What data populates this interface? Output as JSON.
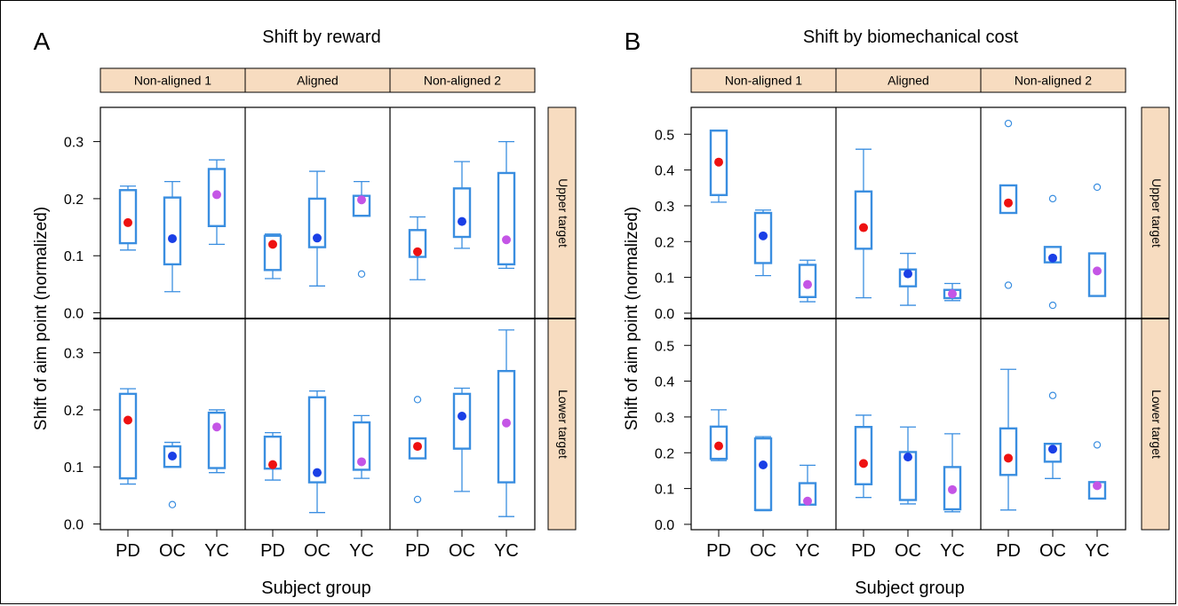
{
  "chart_data": [
    {
      "type": "box",
      "panel_letter": "A",
      "title": "Shift by reward",
      "ylabel": "Shift of aim point (normalized)",
      "xlabel": "Subject group",
      "categories": [
        "PD",
        "OC",
        "YC"
      ],
      "column_strips": [
        "Non-aligned 1",
        "Aligned",
        "Non-aligned 2"
      ],
      "row_strips": [
        "Upper target",
        "Lower target"
      ],
      "ylim": [
        -0.01,
        0.36
      ],
      "yticks": [
        {
          "v": 0.0,
          "label": "0.0"
        },
        {
          "v": 0.1,
          "label": "0.1"
        },
        {
          "v": 0.2,
          "label": "0.2"
        },
        {
          "v": 0.3,
          "label": "0.3"
        }
      ],
      "rows": [
        [
          [
            {
              "g": "PD",
              "wlo": 0.11,
              "q1": 0.122,
              "q3": 0.215,
              "whi": 0.222,
              "mean": 0.158,
              "outliers": []
            },
            {
              "g": "OC",
              "wlo": 0.037,
              "q1": 0.085,
              "q3": 0.202,
              "whi": 0.23,
              "mean": 0.13,
              "outliers": []
            },
            {
              "g": "YC",
              "wlo": 0.12,
              "q1": 0.152,
              "q3": 0.252,
              "whi": 0.268,
              "mean": 0.207,
              "outliers": []
            }
          ],
          [
            {
              "g": "PD",
              "wlo": 0.06,
              "q1": 0.075,
              "q3": 0.135,
              "whi": 0.138,
              "mean": 0.12,
              "outliers": []
            },
            {
              "g": "OC",
              "wlo": 0.047,
              "q1": 0.115,
              "q3": 0.2,
              "whi": 0.248,
              "mean": 0.131,
              "outliers": []
            },
            {
              "g": "YC",
              "wlo": 0.17,
              "q1": 0.17,
              "q3": 0.205,
              "whi": 0.23,
              "mean": 0.198,
              "outliers": [
                0.068
              ]
            }
          ],
          [
            {
              "g": "PD",
              "wlo": 0.058,
              "q1": 0.098,
              "q3": 0.145,
              "whi": 0.168,
              "mean": 0.107,
              "outliers": []
            },
            {
              "g": "OC",
              "wlo": 0.113,
              "q1": 0.133,
              "q3": 0.218,
              "whi": 0.265,
              "mean": 0.16,
              "outliers": []
            },
            {
              "g": "YC",
              "wlo": 0.078,
              "q1": 0.085,
              "q3": 0.245,
              "whi": 0.3,
              "mean": 0.128,
              "outliers": []
            }
          ]
        ],
        [
          [
            {
              "g": "PD",
              "wlo": 0.07,
              "q1": 0.08,
              "q3": 0.228,
              "whi": 0.237,
              "mean": 0.182,
              "outliers": []
            },
            {
              "g": "OC",
              "wlo": 0.1,
              "q1": 0.1,
              "q3": 0.136,
              "whi": 0.143,
              "mean": 0.119,
              "outliers": [
                0.034
              ]
            },
            {
              "g": "YC",
              "wlo": 0.09,
              "q1": 0.098,
              "q3": 0.195,
              "whi": 0.2,
              "mean": 0.17,
              "outliers": []
            }
          ],
          [
            {
              "g": "PD",
              "wlo": 0.077,
              "q1": 0.097,
              "q3": 0.153,
              "whi": 0.16,
              "mean": 0.104,
              "outliers": []
            },
            {
              "g": "OC",
              "wlo": 0.02,
              "q1": 0.073,
              "q3": 0.222,
              "whi": 0.233,
              "mean": 0.09,
              "outliers": []
            },
            {
              "g": "YC",
              "wlo": 0.08,
              "q1": 0.095,
              "q3": 0.178,
              "whi": 0.19,
              "mean": 0.109,
              "outliers": []
            }
          ],
          [
            {
              "g": "PD",
              "wlo": 0.115,
              "q1": 0.115,
              "q3": 0.15,
              "whi": 0.15,
              "mean": 0.136,
              "outliers": [
                0.218,
                0.043
              ]
            },
            {
              "g": "OC",
              "wlo": 0.057,
              "q1": 0.132,
              "q3": 0.228,
              "whi": 0.238,
              "mean": 0.189,
              "outliers": []
            },
            {
              "g": "YC",
              "wlo": 0.013,
              "q1": 0.073,
              "q3": 0.268,
              "whi": 0.34,
              "mean": 0.177,
              "outliers": []
            }
          ]
        ]
      ]
    },
    {
      "type": "box",
      "panel_letter": "B",
      "title": "Shift by biomechanical cost",
      "ylabel": "Shift of aim point (normalized)",
      "xlabel": "Subject group",
      "categories": [
        "PD",
        "OC",
        "YC"
      ],
      "column_strips": [
        "Non-aligned 1",
        "Aligned",
        "Non-aligned 2"
      ],
      "row_strips": [
        "Upper target",
        "Lower target"
      ],
      "ylim": [
        -0.015,
        0.575
      ],
      "yticks": [
        {
          "v": 0.0,
          "label": "0.0"
        },
        {
          "v": 0.1,
          "label": "0.1"
        },
        {
          "v": 0.2,
          "label": "0.2"
        },
        {
          "v": 0.3,
          "label": "0.3"
        },
        {
          "v": 0.4,
          "label": "0.4"
        },
        {
          "v": 0.5,
          "label": "0.5"
        }
      ],
      "rows": [
        [
          [
            {
              "g": "PD",
              "wlo": 0.31,
              "q1": 0.33,
              "q3": 0.51,
              "whi": 0.51,
              "mean": 0.422,
              "outliers": []
            },
            {
              "g": "OC",
              "wlo": 0.105,
              "q1": 0.14,
              "q3": 0.28,
              "whi": 0.288,
              "mean": 0.216,
              "outliers": []
            },
            {
              "g": "YC",
              "wlo": 0.032,
              "q1": 0.045,
              "q3": 0.135,
              "whi": 0.148,
              "mean": 0.08,
              "outliers": []
            }
          ],
          [
            {
              "g": "PD",
              "wlo": 0.043,
              "q1": 0.18,
              "q3": 0.34,
              "whi": 0.458,
              "mean": 0.239,
              "outliers": []
            },
            {
              "g": "OC",
              "wlo": 0.022,
              "q1": 0.075,
              "q3": 0.122,
              "whi": 0.167,
              "mean": 0.11,
              "outliers": []
            },
            {
              "g": "YC",
              "wlo": 0.035,
              "q1": 0.042,
              "q3": 0.065,
              "whi": 0.083,
              "mean": 0.054,
              "outliers": []
            }
          ],
          [
            {
              "g": "PD",
              "wlo": 0.28,
              "q1": 0.28,
              "q3": 0.357,
              "whi": 0.357,
              "mean": 0.308,
              "outliers": [
                0.53,
                0.078
              ]
            },
            {
              "g": "OC",
              "wlo": 0.142,
              "q1": 0.142,
              "q3": 0.185,
              "whi": 0.185,
              "mean": 0.154,
              "outliers": [
                0.32,
                0.022
              ]
            },
            {
              "g": "YC",
              "wlo": 0.048,
              "q1": 0.048,
              "q3": 0.167,
              "whi": 0.167,
              "mean": 0.118,
              "outliers": [
                0.352
              ]
            }
          ]
        ],
        [
          [
            {
              "g": "PD",
              "wlo": 0.178,
              "q1": 0.183,
              "q3": 0.273,
              "whi": 0.32,
              "mean": 0.219,
              "outliers": []
            },
            {
              "g": "OC",
              "wlo": 0.038,
              "q1": 0.04,
              "q3": 0.24,
              "whi": 0.245,
              "mean": 0.166,
              "outliers": []
            },
            {
              "g": "YC",
              "wlo": 0.055,
              "q1": 0.055,
              "q3": 0.115,
              "whi": 0.165,
              "mean": 0.065,
              "outliers": []
            }
          ],
          [
            {
              "g": "PD",
              "wlo": 0.075,
              "q1": 0.112,
              "q3": 0.272,
              "whi": 0.305,
              "mean": 0.17,
              "outliers": []
            },
            {
              "g": "OC",
              "wlo": 0.057,
              "q1": 0.068,
              "q3": 0.202,
              "whi": 0.272,
              "mean": 0.188,
              "outliers": []
            },
            {
              "g": "YC",
              "wlo": 0.035,
              "q1": 0.042,
              "q3": 0.16,
              "whi": 0.253,
              "mean": 0.097,
              "outliers": []
            }
          ],
          [
            {
              "g": "PD",
              "wlo": 0.04,
              "q1": 0.138,
              "q3": 0.268,
              "whi": 0.433,
              "mean": 0.185,
              "outliers": []
            },
            {
              "g": "OC",
              "wlo": 0.128,
              "q1": 0.175,
              "q3": 0.225,
              "whi": 0.225,
              "mean": 0.21,
              "outliers": [
                0.36
              ]
            },
            {
              "g": "YC",
              "wlo": 0.072,
              "q1": 0.072,
              "q3": 0.118,
              "whi": 0.118,
              "mean": 0.108,
              "outliers": [
                0.222
              ]
            }
          ]
        ]
      ]
    }
  ],
  "colors": {
    "box": "#3a8ee0",
    "strip_fill": "#f7dcc0",
    "PD": "#ee1111",
    "OC": "#1a3fe6",
    "YC": "#c455e6"
  }
}
